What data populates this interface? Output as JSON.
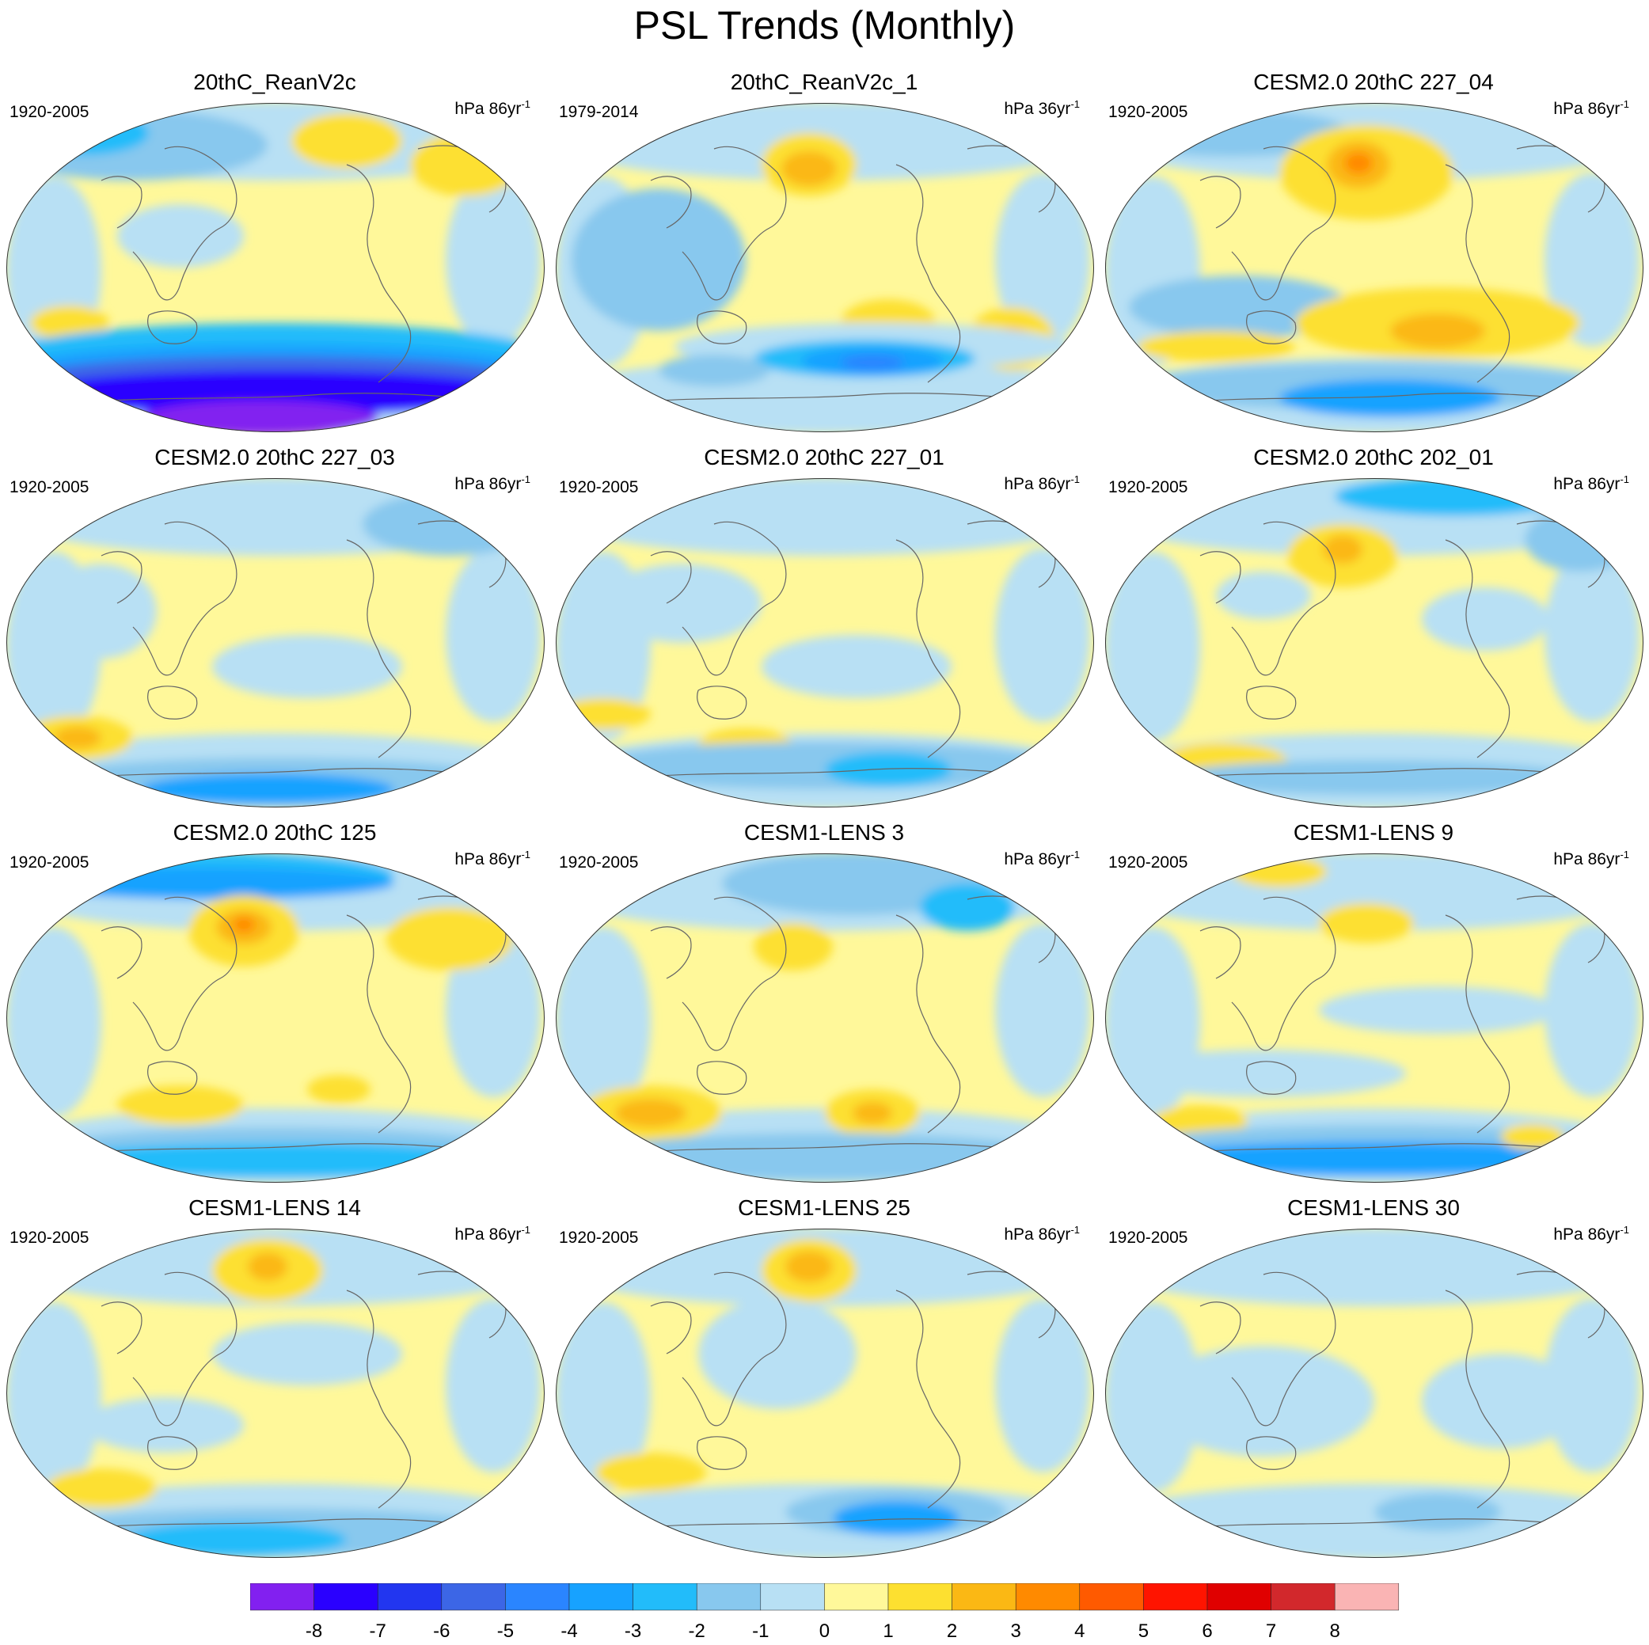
{
  "title": "PSL Trends (Monthly)",
  "panels": [
    {
      "title": "20thC_ReanV2c",
      "period": "1920-2005",
      "units": "hPa 86yr",
      "units_exp": "-1"
    },
    {
      "title": "20thC_ReanV2c_1",
      "period": "1979-2014",
      "units": "hPa 36yr",
      "units_exp": "-1"
    },
    {
      "title": "CESM2.0 20thC 227_04",
      "period": "1920-2005",
      "units": "hPa 86yr",
      "units_exp": "-1"
    },
    {
      "title": "CESM2.0 20thC 227_03",
      "period": "1920-2005",
      "units": "hPa 86yr",
      "units_exp": "-1"
    },
    {
      "title": "CESM2.0 20thC 227_01",
      "period": "1920-2005",
      "units": "hPa 86yr",
      "units_exp": "-1"
    },
    {
      "title": "CESM2.0 20thC 202_01",
      "period": "1920-2005",
      "units": "hPa 86yr",
      "units_exp": "-1"
    },
    {
      "title": "CESM2.0 20thC 125",
      "period": "1920-2005",
      "units": "hPa 86yr",
      "units_exp": "-1"
    },
    {
      "title": "CESM1-LENS 3",
      "period": "1920-2005",
      "units": "hPa 86yr",
      "units_exp": "-1"
    },
    {
      "title": "CESM1-LENS 9",
      "period": "1920-2005",
      "units": "hPa 86yr",
      "units_exp": "-1"
    },
    {
      "title": "CESM1-LENS 14",
      "period": "1920-2005",
      "units": "hPa 86yr",
      "units_exp": "-1"
    },
    {
      "title": "CESM1-LENS 25",
      "period": "1920-2005",
      "units": "hPa 86yr",
      "units_exp": "-1"
    },
    {
      "title": "CESM1-LENS 30",
      "period": "1920-2005",
      "units": "hPa 86yr",
      "units_exp": "-1"
    }
  ],
  "colorbar": {
    "labels": [
      "-8",
      "-7",
      "-6",
      "-5",
      "-4",
      "-3",
      "-2",
      "-1",
      "0",
      "1",
      "2",
      "3",
      "4",
      "5",
      "6",
      "7",
      "8"
    ],
    "colors": [
      "#8220f0",
      "#2a00ff",
      "#2236f0",
      "#3c66e6",
      "#2a85ff",
      "#17a2ff",
      "#22bcfa",
      "#88c8ee",
      "#b8e0f4",
      "#fff89a",
      "#fde030",
      "#fbb814",
      "#ff8a00",
      "#ff5a00",
      "#ff1400",
      "#e00000",
      "#d2282c",
      "#fab4b4"
    ]
  }
}
